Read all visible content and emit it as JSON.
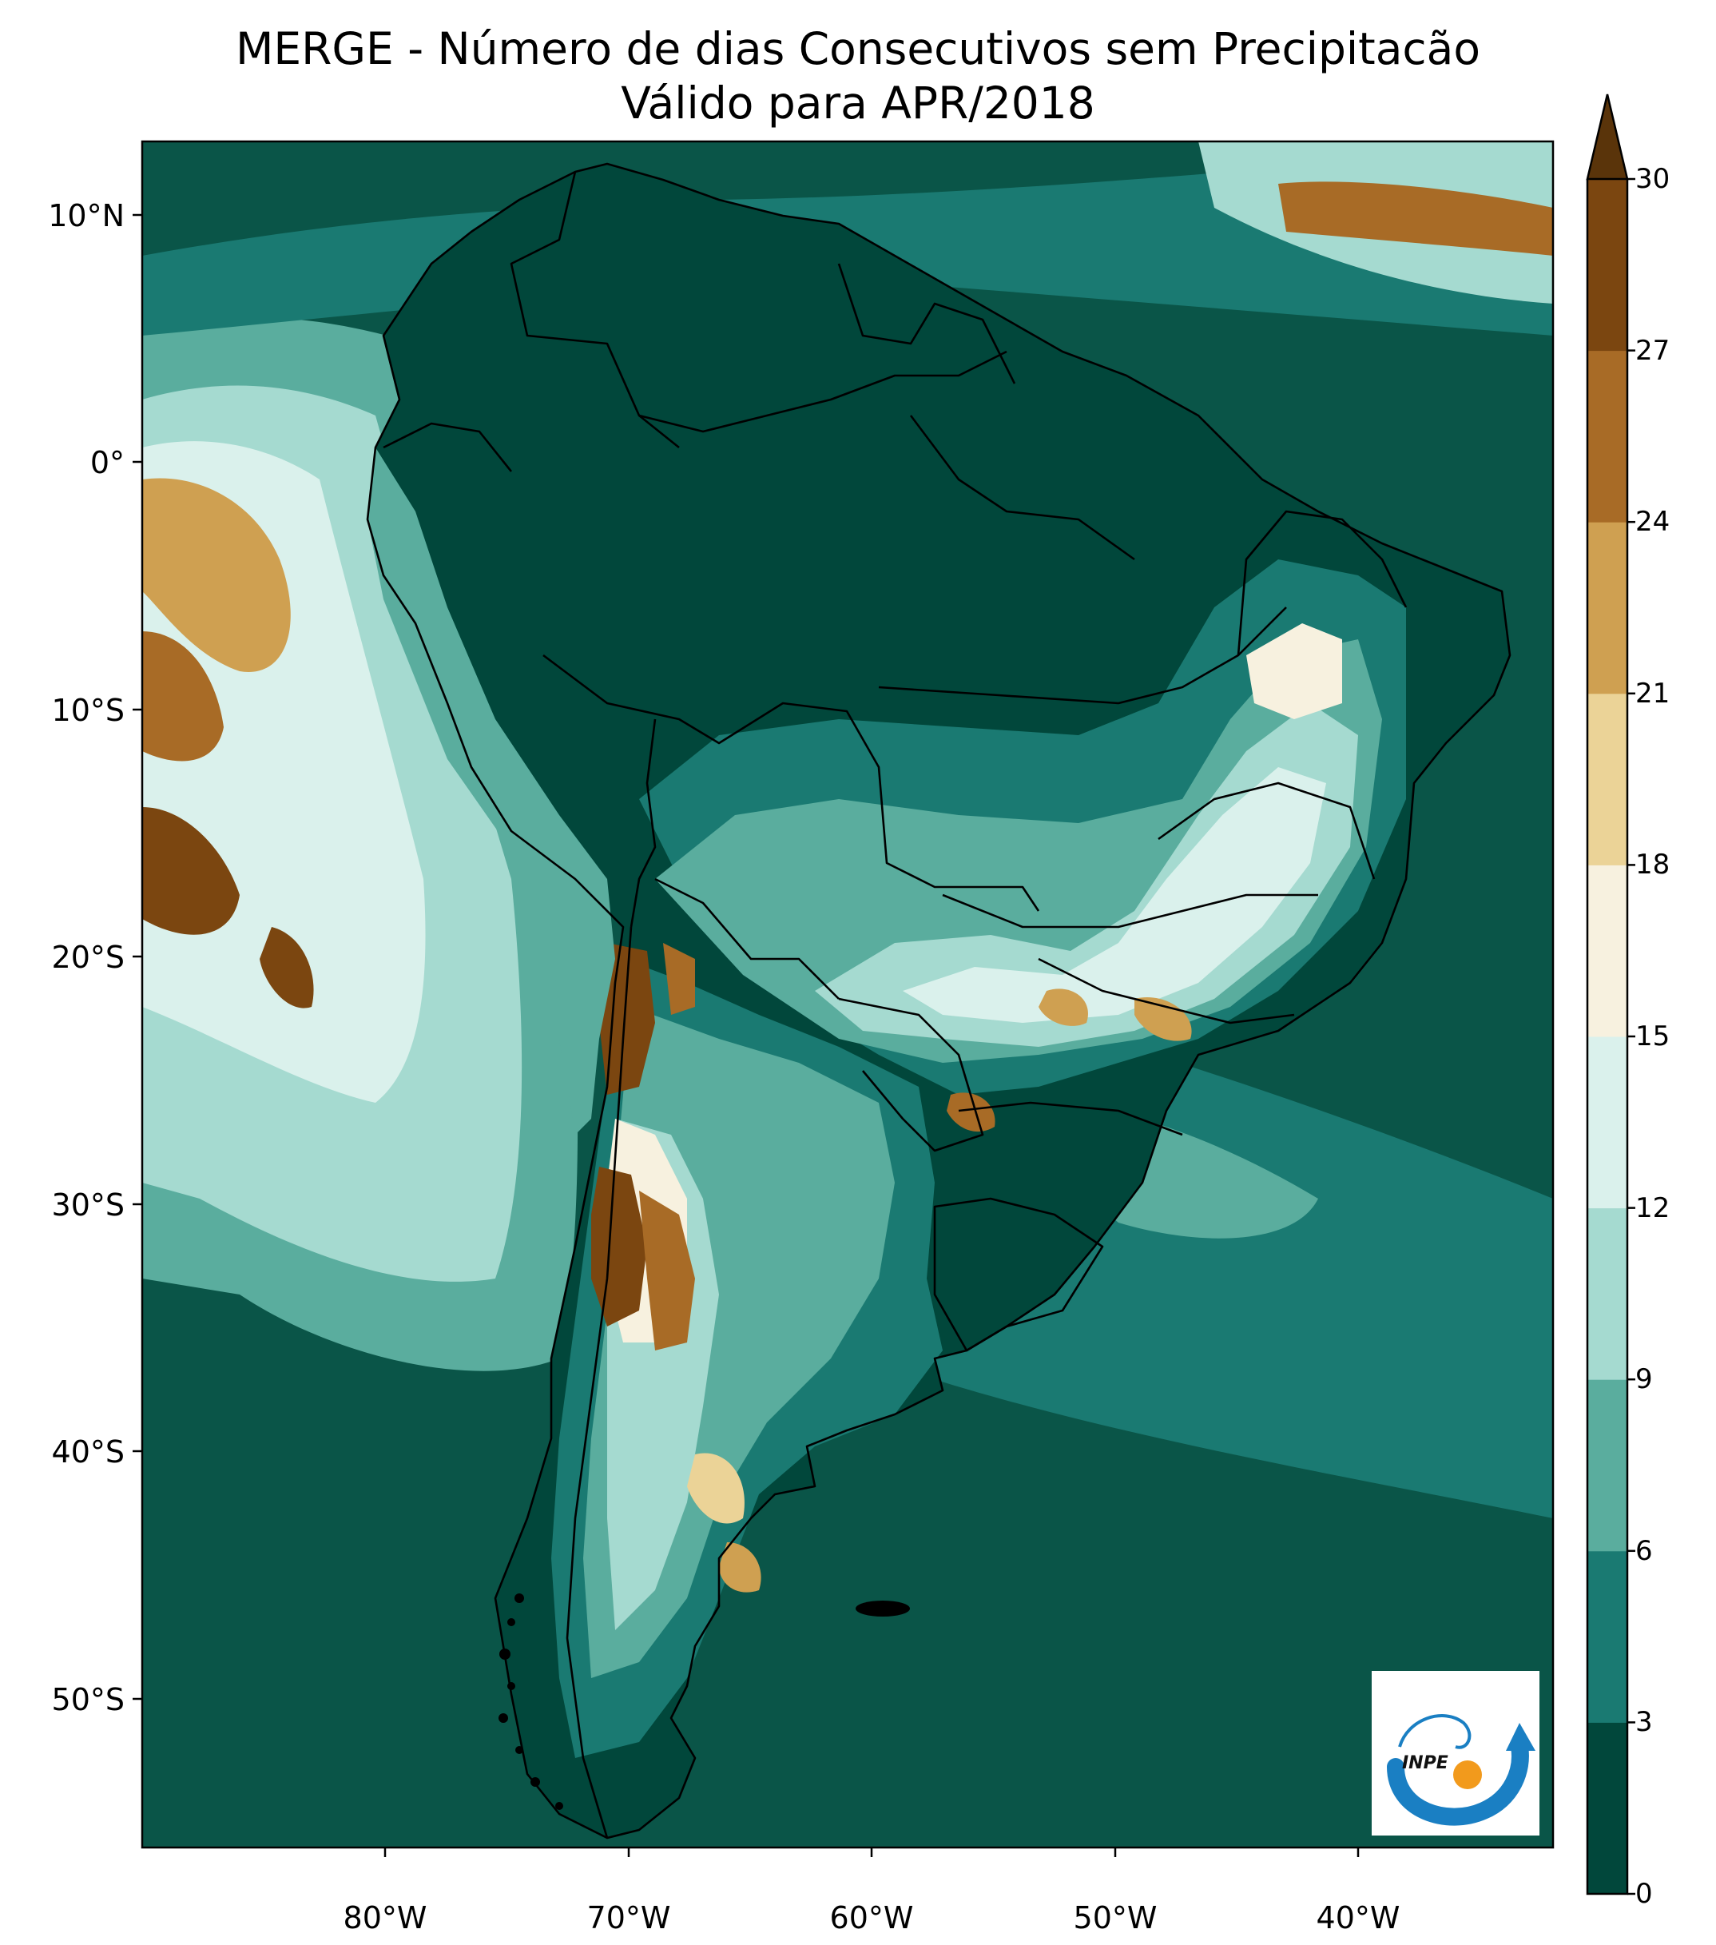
{
  "title": {
    "line1": "MERGE - Número de dias Consecutivos sem Precipitacão",
    "line2": "Válido para APR/2018"
  },
  "latitude_labels": [
    {
      "text": "10°N",
      "value": 10
    },
    {
      "text": "0°",
      "value": 0
    },
    {
      "text": "10°S",
      "value": -10
    },
    {
      "text": "20°S",
      "value": -20
    },
    {
      "text": "30°S",
      "value": -30
    },
    {
      "text": "40°S",
      "value": -40
    },
    {
      "text": "50°S",
      "value": -50
    }
  ],
  "longitude_labels": [
    {
      "text": "80°W",
      "value": -80
    },
    {
      "text": "70°W",
      "value": -70
    },
    {
      "text": "60°W",
      "value": -60
    },
    {
      "text": "50°W",
      "value": -50
    },
    {
      "text": "40°W",
      "value": -40
    }
  ],
  "extent": {
    "lon": [
      -90,
      -32
    ],
    "lat": [
      -56,
      13
    ]
  },
  "colorbar": {
    "ticks": [
      "0",
      "3",
      "6",
      "9",
      "12",
      "15",
      "18",
      "21",
      "24",
      "27",
      "30"
    ],
    "colors": [
      "#01473b",
      "#1a7a72",
      "#5aad9e",
      "#a5dad0",
      "#daf1ec",
      "#f7f1df",
      "#ebd397",
      "#cfa051",
      "#a86b26",
      "#7b4610"
    ],
    "extend_color": "#5a340a"
  },
  "logo": {
    "text": "INPE",
    "colors": {
      "blue": "#1a7fc3",
      "orange": "#f29a1c"
    }
  }
}
